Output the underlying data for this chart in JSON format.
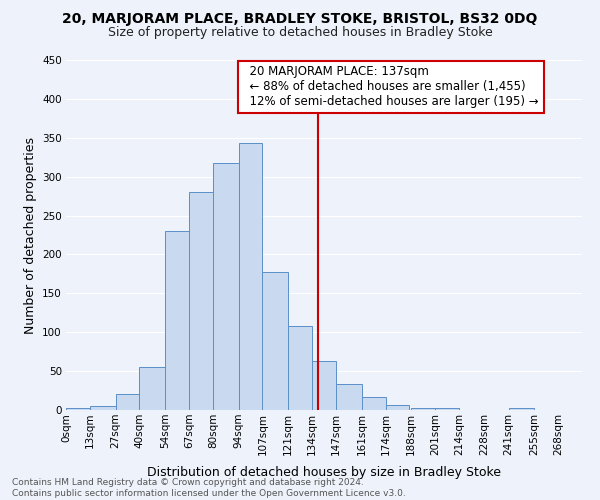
{
  "title1": "20, MARJORAM PLACE, BRADLEY STOKE, BRISTOL, BS32 0DQ",
  "title2": "Size of property relative to detached houses in Bradley Stoke",
  "xlabel": "Distribution of detached houses by size in Bradley Stoke",
  "ylabel": "Number of detached properties",
  "footer1": "Contains HM Land Registry data © Crown copyright and database right 2024.",
  "footer2": "Contains public sector information licensed under the Open Government Licence v3.0.",
  "annotation_line1": "20 MARJORAM PLACE: 137sqm",
  "annotation_line2": "← 88% of detached houses are smaller (1,455)",
  "annotation_line3": "12% of semi-detached houses are larger (195) →",
  "property_size": 137,
  "bar_labels": [
    "0sqm",
    "13sqm",
    "27sqm",
    "40sqm",
    "54sqm",
    "67sqm",
    "80sqm",
    "94sqm",
    "107sqm",
    "121sqm",
    "134sqm",
    "147sqm",
    "161sqm",
    "174sqm",
    "188sqm",
    "201sqm",
    "214sqm",
    "228sqm",
    "241sqm",
    "255sqm",
    "268sqm"
  ],
  "bar_left_edges": [
    0,
    13,
    27,
    40,
    54,
    67,
    80,
    94,
    107,
    121,
    134,
    147,
    161,
    174,
    188,
    201,
    214,
    228,
    241,
    255,
    268
  ],
  "bar_widths": [
    13,
    14,
    13,
    14,
    13,
    13,
    14,
    13,
    14,
    13,
    13,
    14,
    13,
    13,
    14,
    13,
    14,
    13,
    14,
    13,
    13
  ],
  "bar_heights": [
    2,
    5,
    20,
    55,
    230,
    280,
    318,
    343,
    178,
    108,
    63,
    33,
    17,
    7,
    2,
    2,
    0,
    0,
    2,
    0,
    0
  ],
  "bar_color": "#c9d9f0",
  "bar_edge_color": "#5b8fc9",
  "vline_x": 137,
  "vline_color": "#cc0000",
  "annotation_box_color": "#cc0000",
  "background_color": "#eef2fa",
  "grid_color": "#ffffff",
  "ylim": [
    0,
    450
  ],
  "yticks": [
    0,
    50,
    100,
    150,
    200,
    250,
    300,
    350,
    400,
    450
  ],
  "title1_fontsize": 10,
  "title2_fontsize": 9,
  "xlabel_fontsize": 9,
  "ylabel_fontsize": 9,
  "tick_fontsize": 7.5,
  "annotation_fontsize": 8.5,
  "footer_fontsize": 6.5
}
